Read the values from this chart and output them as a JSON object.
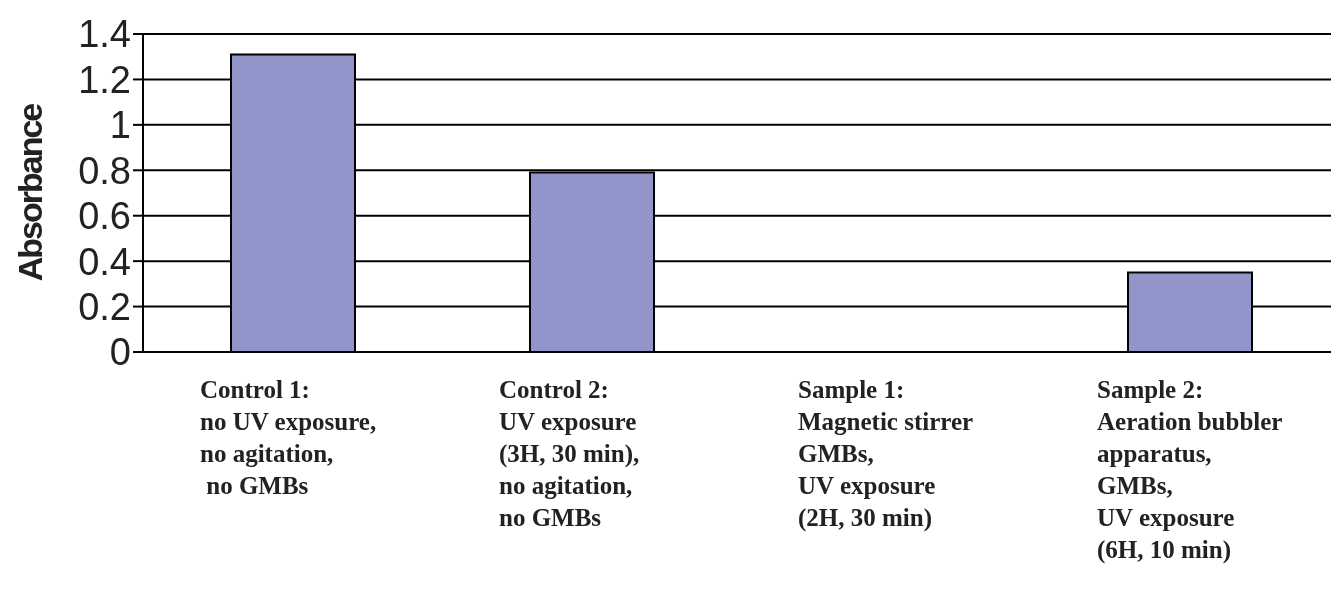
{
  "chart_data": {
    "type": "bar",
    "ylabel": "Absorbance",
    "categories": [
      "Control 1:\nno UV exposure,\nno agitation,\n no GMBs",
      "Control 2:\nUV exposure\n(3H, 30 min),\nno agitation,\nno GMBs",
      "Sample 1:\nMagnetic stirrer\nGMBs,\nUV exposure\n(2H, 30 min)",
      "Sample 2:\nAeration bubbler\napparatus,\nGMBs,\nUV exposure\n(6H, 10 min)"
    ],
    "values": [
      1.31,
      0.79,
      0,
      0.35
    ],
    "color": "#9295c9",
    "ylim": [
      0,
      1.4
    ],
    "yticks": [
      0,
      0.2,
      0.4,
      0.6,
      0.8,
      1,
      1.2,
      1.4
    ],
    "grid": "y"
  }
}
